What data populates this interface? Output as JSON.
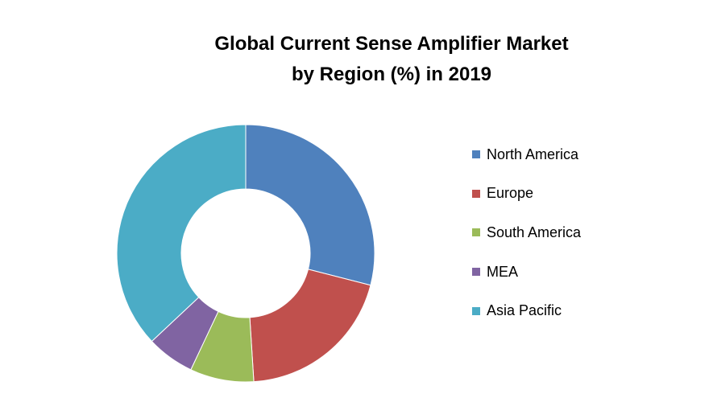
{
  "chart_data": {
    "type": "pie",
    "title_line1": "Global Current Sense Amplifier Market",
    "title_line2": "by Region (%) in 2019",
    "categories": [
      "North America",
      "Europe",
      "South America",
      "MEA",
      "Asia Pacific"
    ],
    "values": [
      29,
      20,
      8,
      6,
      37
    ],
    "colors": [
      "#4F81BD",
      "#C0504D",
      "#9BBB59",
      "#8064A2",
      "#4BACC6"
    ],
    "donut": true,
    "legend_position": "right"
  }
}
